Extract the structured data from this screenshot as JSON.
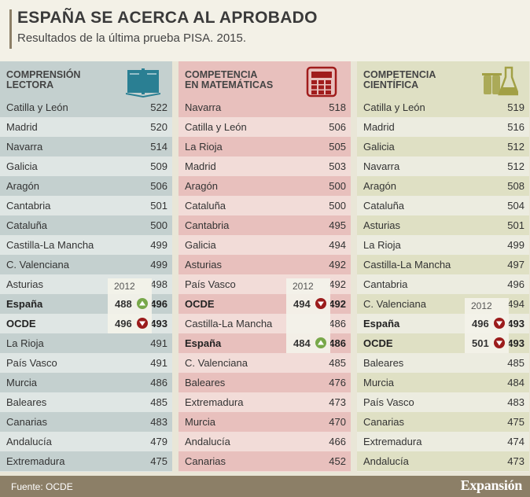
{
  "header": {
    "title": "ESPAÑA SE ACERCA AL APROBADO",
    "subtitle": "Resultados de la última prueba PISA. 2015."
  },
  "chart_data": [
    {
      "type": "table",
      "title_lines": [
        "COMPRENSIÓN",
        "LECTORA"
      ],
      "icon": "book-icon",
      "colors": {
        "header": "#c4d0cf",
        "row_a": "#c4d0cf",
        "row_b": "#dfe6e4",
        "icon": "#2a7f93"
      },
      "rows": [
        {
          "name": "Catilla y León",
          "value": 522
        },
        {
          "name": "Madrid",
          "value": 520
        },
        {
          "name": "Navarra",
          "value": 514
        },
        {
          "name": "Galicia",
          "value": 509
        },
        {
          "name": "Aragón",
          "value": 506
        },
        {
          "name": "Cantabria",
          "value": 501
        },
        {
          "name": "Cataluña",
          "value": 500
        },
        {
          "name": "Castilla-La Mancha",
          "value": 499
        },
        {
          "name": "C. Valenciana",
          "value": 499
        },
        {
          "name": "Asturias",
          "value": 498
        },
        {
          "name": "España",
          "value": 496,
          "bold": true,
          "prev": 488,
          "trend": "up"
        },
        {
          "name": "OCDE",
          "value": 493,
          "bold": true,
          "prev": 496,
          "trend": "down"
        },
        {
          "name": "La Rioja",
          "value": 491
        },
        {
          "name": "País Vasco",
          "value": 491
        },
        {
          "name": "Murcia",
          "value": 486
        },
        {
          "name": "Baleares",
          "value": 485
        },
        {
          "name": "Canarias",
          "value": 483
        },
        {
          "name": "Andalucía",
          "value": 479
        },
        {
          "name": "Extremadura",
          "value": 475
        }
      ],
      "comparison_label": "2012"
    },
    {
      "type": "table",
      "title_lines": [
        "COMPETENCIA",
        "EN MATEMÁTICAS"
      ],
      "icon": "calculator-icon",
      "colors": {
        "header": "#e8c0bd",
        "row_a": "#e8c0bd",
        "row_b": "#f2dcd8",
        "icon": "#a01c1c"
      },
      "rows": [
        {
          "name": "Navarra",
          "value": 518
        },
        {
          "name": "Catilla y León",
          "value": 506
        },
        {
          "name": "La Rioja",
          "value": 505
        },
        {
          "name": "Madrid",
          "value": 503
        },
        {
          "name": "Aragón",
          "value": 500
        },
        {
          "name": "Cataluña",
          "value": 500
        },
        {
          "name": "Cantabria",
          "value": 495
        },
        {
          "name": "Galicia",
          "value": 494
        },
        {
          "name": "Asturias",
          "value": 492
        },
        {
          "name": "País Vasco",
          "value": 492
        },
        {
          "name": "OCDE",
          "value": 492,
          "bold": true,
          "prev": 494,
          "trend": "down"
        },
        {
          "name": "Castilla-La Mancha",
          "value": 486
        },
        {
          "name": "España",
          "value": 486,
          "bold": true,
          "prev": 484,
          "trend": "up"
        },
        {
          "name": "C. Valenciana",
          "value": 485
        },
        {
          "name": "Baleares",
          "value": 476
        },
        {
          "name": "Extremadura",
          "value": 473
        },
        {
          "name": "Murcia",
          "value": 470
        },
        {
          "name": "Andalucía",
          "value": 466
        },
        {
          "name": "Canarias",
          "value": 452
        }
      ],
      "comparison_label": "2012"
    },
    {
      "type": "table",
      "title_lines": [
        "COMPETENCIA",
        "CIENTÍFICA"
      ],
      "icon": "flask-icon",
      "colors": {
        "header": "#dfe0c4",
        "row_a": "#dfe0c4",
        "row_b": "#ecece0",
        "icon": "#a2a045"
      },
      "rows": [
        {
          "name": "Catilla y León",
          "value": 519
        },
        {
          "name": "Madrid",
          "value": 516
        },
        {
          "name": "Galicia",
          "value": 512
        },
        {
          "name": "Navarra",
          "value": 512
        },
        {
          "name": "Aragón",
          "value": 508
        },
        {
          "name": "Cataluña",
          "value": 504
        },
        {
          "name": "Asturias",
          "value": 501
        },
        {
          "name": "La Rioja",
          "value": 499
        },
        {
          "name": "Castilla-La Mancha",
          "value": 497
        },
        {
          "name": "Cantabria",
          "value": 496
        },
        {
          "name": "C. Valenciana",
          "value": 494
        },
        {
          "name": "España",
          "value": 493,
          "bold": true,
          "prev": 496,
          "trend": "down"
        },
        {
          "name": "OCDE",
          "value": 493,
          "bold": true,
          "prev": 501,
          "trend": "down"
        },
        {
          "name": "Baleares",
          "value": 485
        },
        {
          "name": "Murcia",
          "value": 484
        },
        {
          "name": "País Vasco",
          "value": 483
        },
        {
          "name": "Canarias",
          "value": 475
        },
        {
          "name": "Extremadura",
          "value": 474
        },
        {
          "name": "Andalucía",
          "value": 473
        }
      ],
      "comparison_label": "2012"
    }
  ],
  "footer": {
    "source": "Fuente: OCDE",
    "brand": "Expansión"
  }
}
